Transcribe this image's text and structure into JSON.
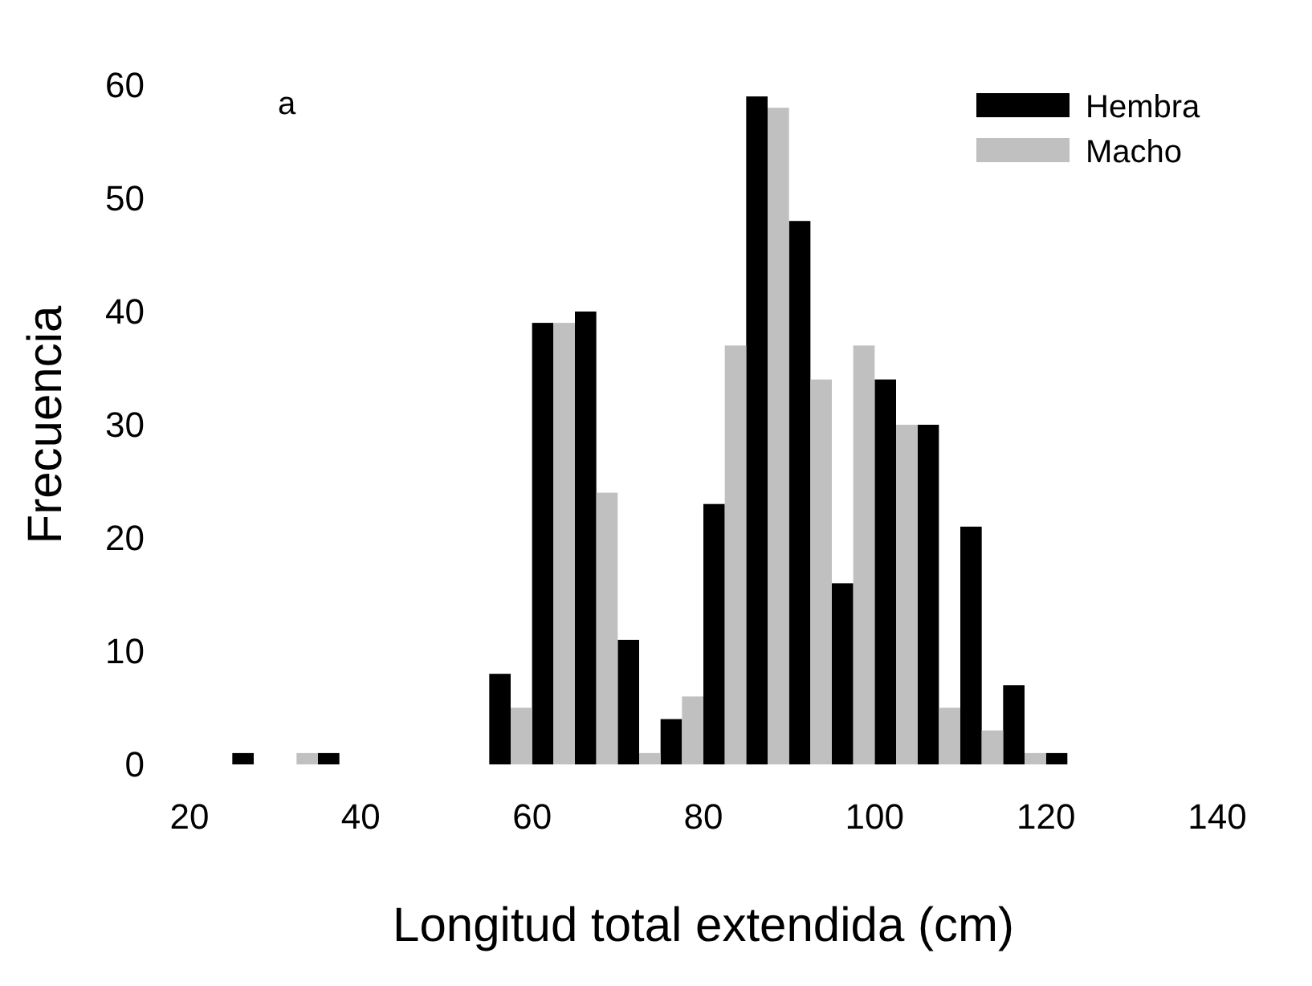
{
  "chart_data": {
    "type": "histogram",
    "xlabel": "Longitud total extendida (cm)",
    "ylabel": "Frecuencia",
    "annotations": [
      "a"
    ],
    "bins": [
      25,
      30,
      35,
      40,
      45,
      50,
      55,
      60,
      65,
      70,
      75,
      80,
      85,
      90,
      95,
      100,
      105,
      110,
      115,
      120,
      125
    ],
    "series": [
      {
        "name": "Hembra",
        "color": "#000000",
        "values": [
          1,
          0,
          1,
          0,
          0,
          0,
          8,
          39,
          40,
          11,
          4,
          23,
          59,
          48,
          16,
          34,
          30,
          21,
          7,
          1
        ]
      },
      {
        "name": "Macho",
        "color": "#c0c0c0",
        "values": [
          0,
          1,
          0,
          0,
          0,
          0,
          5,
          39,
          24,
          1,
          6,
          37,
          58,
          34,
          37,
          30,
          5,
          3,
          1,
          0
        ]
      }
    ],
    "xlim": [
      20,
      140
    ],
    "xticks": [
      20,
      40,
      60,
      80,
      100,
      120,
      140
    ],
    "ylim": [
      0,
      60
    ],
    "yticks": [
      0,
      10,
      20,
      30,
      40,
      50,
      60
    ],
    "legend": "top right",
    "grid": false
  }
}
